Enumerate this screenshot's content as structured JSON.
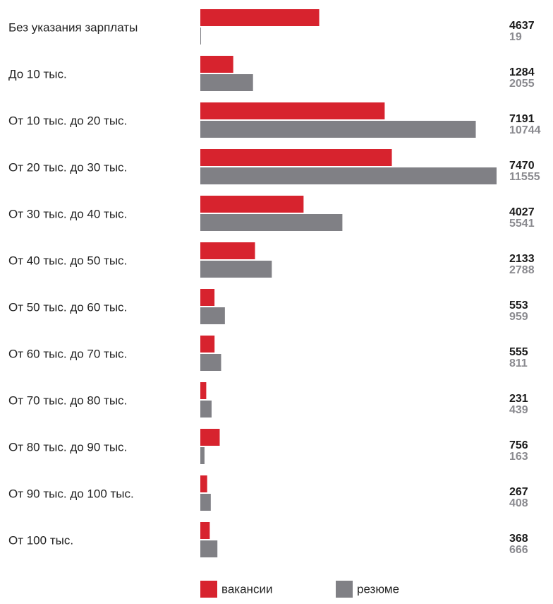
{
  "chart_data": {
    "type": "bar",
    "orientation": "horizontal",
    "categories": [
      "Без указания зарплаты",
      "До 10 тыс.",
      "От 10 тыс. до 20 тыс.",
      "От 20 тыс. до 30 тыс.",
      "От 30 тыс. до 40 тыс.",
      "От 40 тыс. до 50 тыс.",
      "От 50 тыс. до 60 тыс.",
      "От 60 тыс. до 70 тыс.",
      "От 70 тыс. до 80 тыс.",
      "От 80 тыс. до 90 тыс.",
      "От 90 тыс. до 100 тыс.",
      "От 100 тыс."
    ],
    "series": [
      {
        "name": "вакансии",
        "color": "#d7232e",
        "label_color": "#1a1a1a",
        "values": [
          4637,
          1284,
          7191,
          7470,
          4027,
          2133,
          553,
          555,
          231,
          756,
          267,
          368
        ]
      },
      {
        "name": "резюме",
        "color": "#808085",
        "label_color": "#8a8a8f",
        "values": [
          19,
          2055,
          10744,
          11555,
          5541,
          2788,
          959,
          811,
          439,
          163,
          408,
          666
        ]
      }
    ]
  }
}
